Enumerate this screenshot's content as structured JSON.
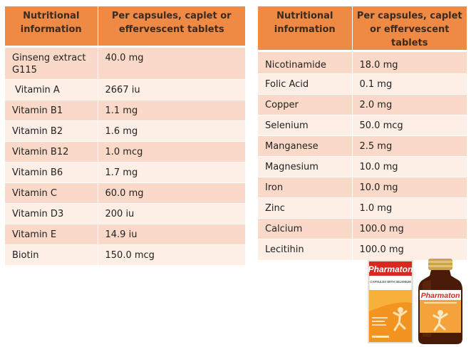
{
  "left_table": {
    "headers": [
      "Nutritional information",
      "Per capsules, caplet or effervescent tablets"
    ],
    "rows": [
      {
        "name": "Ginseng extract G115",
        "value": "40.0 mg"
      },
      {
        "name": "Vitamin A",
        "value": "2667  iu"
      },
      {
        "name": "Vitamin B1",
        "value": "1.1 mg"
      },
      {
        "name": "Vitamin B2",
        "value": "1.6 mg"
      },
      {
        "name": "Vitamin B12",
        "value": "1.0  mcg"
      },
      {
        "name": "Vitamin B6",
        "value": "1.7 mg"
      },
      {
        "name": "Vitamin C",
        "value": "60.0 mg"
      },
      {
        "name": "Vitamin D3",
        "value": "200  iu"
      },
      {
        "name": "Vitamin E",
        "value": "14.9 iu"
      },
      {
        "name": "Biotin",
        "value": "150.0 mcg"
      }
    ]
  },
  "right_table": {
    "headers": [
      "Nutritional information",
      "Per capsules, caplet or effervescent tablets"
    ],
    "rows": [
      {
        "name": "Nicotinamide",
        "value": "18.0 mg"
      },
      {
        "name": "Folic Acid",
        "value": "0.1 mg"
      },
      {
        "name": "Copper",
        "value": "2.0 mg"
      },
      {
        "name": "Selenium",
        "value": "50.0 mcg"
      },
      {
        "name": "Manganese",
        "value": "2.5 mg"
      },
      {
        "name": "Magnesium",
        "value": "10.0 mg"
      },
      {
        "name": "Iron",
        "value": "10.0 mg"
      },
      {
        "name": "Zinc",
        "value": "1.0 mg"
      },
      {
        "name": "Calcium",
        "value": "100.0 mg"
      },
      {
        "name": "Lecitihin",
        "value": "100.0 mg"
      }
    ]
  },
  "product": {
    "brand": "Pharmaton",
    "box_subtitle": "CAPSULES WITH SELENIUM"
  },
  "colors": {
    "header_orange": "#ef8a45",
    "row_dark": "#fbd9c8",
    "row_light": "#fdeee6"
  }
}
